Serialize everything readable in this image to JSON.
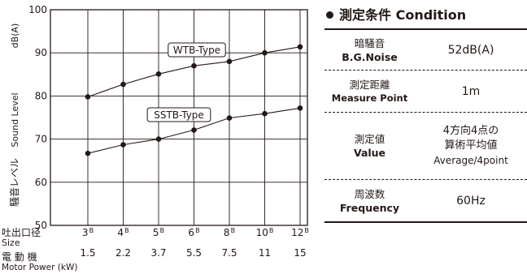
{
  "chart_data": {
    "type": "line",
    "ylabel_jp": "騒音レベル",
    "ylabel_en": "Sound Level",
    "yunit": "dB(A)",
    "ylim": [
      50,
      100
    ],
    "yticks": [
      "50",
      "60",
      "70",
      "80",
      "90",
      "100"
    ],
    "grid": true,
    "size_row_label_jp": "吐出口径",
    "size_row_label_en": "Size",
    "power_row_label_jp": "電 動 機",
    "power_row_label_en": "Motor Power (kW)",
    "size_ticks": [
      {
        "num": "3",
        "sup": "B"
      },
      {
        "num": "4",
        "sup": "B"
      },
      {
        "num": "5",
        "sup": "B"
      },
      {
        "num": "6",
        "sup": "B"
      },
      {
        "num": "8",
        "sup": "B"
      },
      {
        "num": "10",
        "sup": "B"
      },
      {
        "num": "12",
        "sup": "B"
      }
    ],
    "x": [
      "1.5",
      "2.2",
      "3.7",
      "5.5",
      "7.5",
      "11",
      "15"
    ],
    "series": [
      {
        "name": "WTB-Type",
        "values": [
          79.8,
          82.7,
          85.1,
          87.0,
          88.0,
          90.0,
          91.4
        ]
      },
      {
        "name": "SSTB-Type",
        "values": [
          66.7,
          68.7,
          70.0,
          72.1,
          74.9,
          75.9,
          77.2
        ]
      }
    ]
  },
  "conditions": {
    "title_jp": "測定条件",
    "title_en": "Condition",
    "rows": [
      {
        "label_jp": "暗騒音",
        "label_en": "B.G.Noise",
        "value": [
          "52dB(A)"
        ]
      },
      {
        "label_jp": "測定距離",
        "label_en": "Measure Point",
        "value": [
          "1m"
        ]
      },
      {
        "label_jp": "測定値",
        "label_en": "Value",
        "value": [
          "4方向4点の",
          "算術平均値",
          "Average/4point"
        ]
      },
      {
        "label_jp": "周波数",
        "label_en": "Frequency",
        "value": [
          "60Hz"
        ]
      }
    ]
  }
}
